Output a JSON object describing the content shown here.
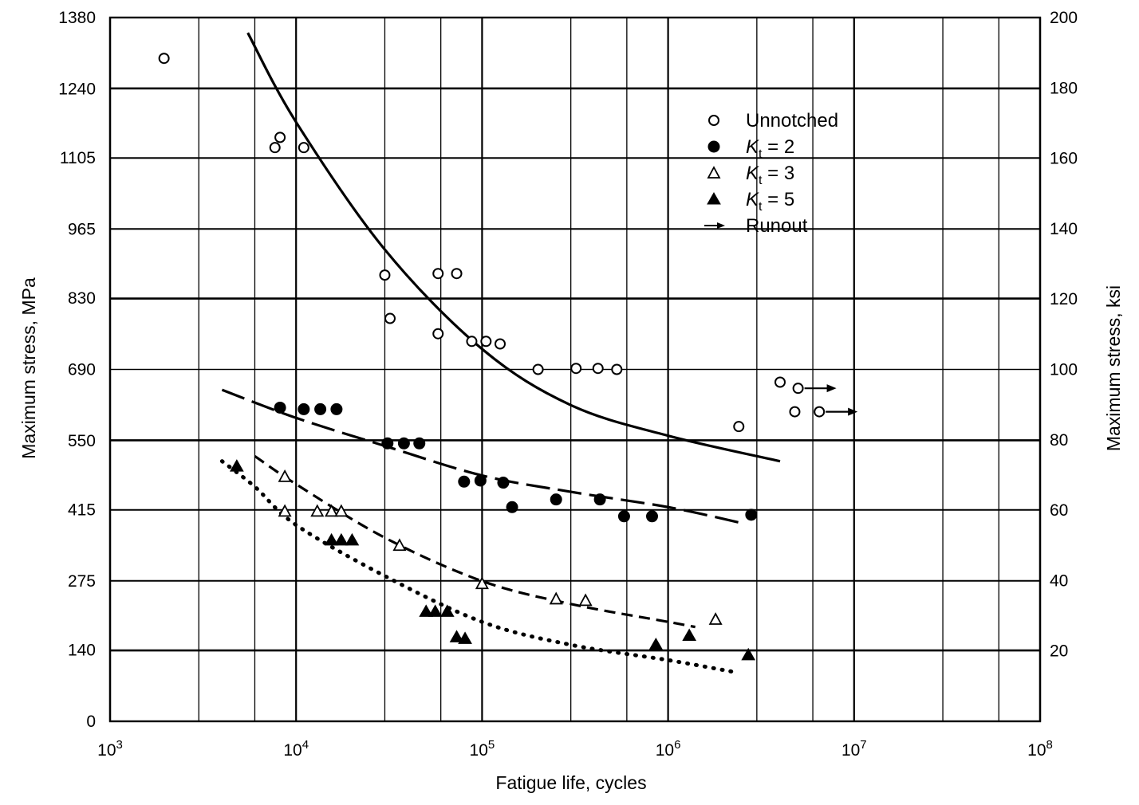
{
  "chart_data": {
    "type": "scatter",
    "x_scale": "log",
    "xlabel": "Fatigue life, cycles",
    "ylabel": "Maximum stress, MPa",
    "y2label": "Maximum stress, ksi",
    "xlim": [
      1000,
      100000000
    ],
    "ylim": [
      0,
      1380
    ],
    "y2lim": [
      0,
      200
    ],
    "x_ticks": [
      {
        "value": 1000,
        "base": "10",
        "exp": "3"
      },
      {
        "value": 10000,
        "base": "10",
        "exp": "4"
      },
      {
        "value": 100000,
        "base": "10",
        "exp": "5"
      },
      {
        "value": 1000000,
        "base": "10",
        "exp": "6"
      },
      {
        "value": 10000000,
        "base": "10",
        "exp": "7"
      },
      {
        "value": 100000000,
        "base": "10",
        "exp": "8"
      }
    ],
    "y_ticks": [
      "0",
      "140",
      "275",
      "415",
      "550",
      "690",
      "830",
      "965",
      "1105",
      "1240",
      "1380"
    ],
    "y2_ticks": [
      "20",
      "40",
      "60",
      "80",
      "100",
      "120",
      "140",
      "160",
      "180",
      "200"
    ],
    "grid": true,
    "legend_position": "top-right",
    "legend": [
      {
        "marker": "open-circle",
        "text": "Unnotched",
        "sub": "",
        "suffix": ""
      },
      {
        "marker": "filled-circle",
        "text": "K",
        "sub": "t",
        "suffix": " = 2"
      },
      {
        "marker": "open-triangle",
        "text": "K",
        "sub": "t",
        "suffix": " = 3"
      },
      {
        "marker": "filled-triangle",
        "text": "K",
        "sub": "t",
        "suffix": " = 5"
      },
      {
        "marker": "arrow",
        "text": "Runout",
        "sub": "",
        "suffix": ""
      }
    ],
    "series": [
      {
        "name": "Unnotched",
        "marker": "open-circle",
        "points": [
          [
            1950,
            1300
          ],
          [
            7700,
            1125
          ],
          [
            8200,
            1145
          ],
          [
            11000,
            1125
          ],
          [
            30000,
            875
          ],
          [
            32000,
            790
          ],
          [
            58000,
            760
          ],
          [
            58000,
            878
          ],
          [
            73000,
            878
          ],
          [
            88000,
            745
          ],
          [
            105000,
            745
          ],
          [
            125000,
            740
          ],
          [
            200000,
            690
          ],
          [
            320000,
            692
          ],
          [
            420000,
            692
          ],
          [
            530000,
            690
          ],
          [
            2400000,
            578
          ],
          [
            4000000,
            665
          ],
          [
            4800000,
            607
          ],
          [
            5000000,
            653
          ],
          [
            6500000,
            607
          ]
        ],
        "runout_points": [
          [
            5000000,
            653
          ],
          [
            6500000,
            607
          ]
        ]
      },
      {
        "name": "K = 2",
        "marker": "filled-circle",
        "points": [
          [
            8200,
            615
          ],
          [
            11000,
            612
          ],
          [
            13500,
            612
          ],
          [
            16500,
            612
          ],
          [
            31000,
            545
          ],
          [
            38000,
            545
          ],
          [
            46000,
            545
          ],
          [
            80000,
            470
          ],
          [
            98000,
            472
          ],
          [
            130000,
            468
          ],
          [
            145000,
            420
          ],
          [
            250000,
            435
          ],
          [
            430000,
            435
          ],
          [
            580000,
            402
          ],
          [
            820000,
            402
          ],
          [
            2800000,
            405
          ]
        ]
      },
      {
        "name": "K = 3",
        "marker": "open-triangle",
        "points": [
          [
            8700,
            480
          ],
          [
            8700,
            412
          ],
          [
            13000,
            412
          ],
          [
            15500,
            412
          ],
          [
            17500,
            412
          ],
          [
            36000,
            345
          ],
          [
            100000,
            270
          ],
          [
            250000,
            240
          ],
          [
            360000,
            237
          ],
          [
            1800000,
            200
          ]
        ]
      },
      {
        "name": "K = 5",
        "marker": "filled-triangle",
        "points": [
          [
            4800,
            500
          ],
          [
            15500,
            355
          ],
          [
            17500,
            355
          ],
          [
            20000,
            355
          ],
          [
            50000,
            215
          ],
          [
            56000,
            215
          ],
          [
            65000,
            215
          ],
          [
            73000,
            165
          ],
          [
            81000,
            162
          ],
          [
            860000,
            150
          ],
          [
            1300000,
            168
          ],
          [
            2700000,
            130
          ]
        ]
      }
    ],
    "fit_curves": [
      {
        "style": "solid",
        "points": [
          [
            5500,
            1350
          ],
          [
            10000,
            1175
          ],
          [
            30000,
            925
          ],
          [
            100000,
            730
          ],
          [
            300000,
            620
          ],
          [
            1000000,
            560
          ],
          [
            4000000,
            510
          ]
        ]
      },
      {
        "style": "long-dash",
        "points": [
          [
            4000,
            650
          ],
          [
            10000,
            595
          ],
          [
            30000,
            540
          ],
          [
            100000,
            482
          ],
          [
            300000,
            450
          ],
          [
            1000000,
            420
          ],
          [
            2400000,
            390
          ]
        ]
      },
      {
        "style": "dash",
        "points": [
          [
            6000,
            520
          ],
          [
            10000,
            465
          ],
          [
            30000,
            360
          ],
          [
            100000,
            275
          ],
          [
            300000,
            230
          ],
          [
            1000000,
            195
          ],
          [
            1400000,
            185
          ]
        ]
      },
      {
        "style": "dotted",
        "points": [
          [
            4000,
            510
          ],
          [
            6000,
            460
          ],
          [
            10000,
            385
          ],
          [
            30000,
            285
          ],
          [
            100000,
            195
          ],
          [
            300000,
            150
          ],
          [
            1000000,
            120
          ],
          [
            2400000,
            95
          ]
        ]
      }
    ]
  }
}
